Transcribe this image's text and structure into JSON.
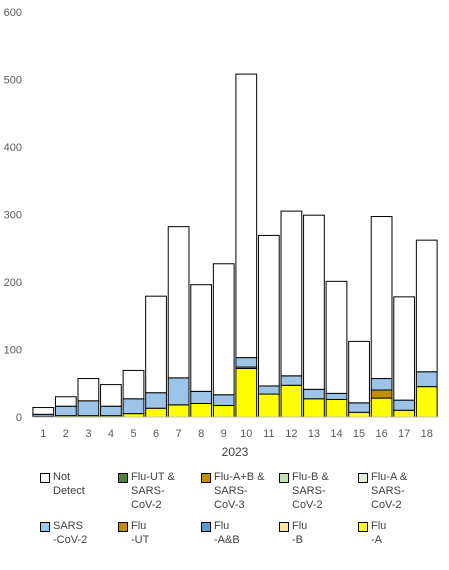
{
  "chart_data": {
    "type": "bar",
    "stacked": true,
    "xlabel": "2023",
    "ylim": [
      0,
      600
    ],
    "yticks": [
      0,
      100,
      200,
      300,
      400,
      500,
      600
    ],
    "grid": false,
    "legend_position": "bottom",
    "categories": [
      "1",
      "2",
      "3",
      "4",
      "5",
      "6",
      "7",
      "8",
      "9",
      "10",
      "11",
      "12",
      "13",
      "14",
      "15",
      "16",
      "17",
      "18"
    ],
    "series": [
      {
        "name": "Flu\n-A",
        "color": "#ffff00",
        "values": [
          1,
          2,
          2,
          2,
          5,
          13,
          18,
          20,
          17,
          72,
          34,
          47,
          27,
          26,
          7,
          28,
          10,
          45
        ]
      },
      {
        "name": "Flu\n-B",
        "color": "#ffe699",
        "values": [
          0,
          0,
          0,
          0,
          0,
          0,
          0,
          0,
          0,
          2,
          0,
          0,
          0,
          0,
          0,
          0,
          0,
          0
        ]
      },
      {
        "name": "Flu\n-A&B",
        "color": "#5b9bd5",
        "values": [
          0,
          0,
          0,
          0,
          0,
          0,
          0,
          0,
          0,
          0,
          0,
          0,
          0,
          0,
          0,
          0,
          0,
          0
        ]
      },
      {
        "name": "Flu\n-UT",
        "color": "#bf8f00",
        "values": [
          0,
          0,
          0,
          0,
          0,
          0,
          0,
          0,
          0,
          0,
          0,
          0,
          0,
          0,
          0,
          12,
          0,
          0
        ]
      },
      {
        "name": "SARS\n-CoV-2",
        "color": "#9dc3e6",
        "values": [
          3,
          14,
          22,
          14,
          22,
          23,
          40,
          18,
          16,
          14,
          12,
          14,
          14,
          9,
          14,
          17,
          15,
          22
        ]
      },
      {
        "name": "Flu-A &\nSARS-\nCoV-2",
        "color": "#e2f0d9",
        "values": [
          0,
          0,
          0,
          0,
          0,
          0,
          0,
          0,
          0,
          0,
          0,
          0,
          0,
          0,
          0,
          0,
          0,
          0
        ]
      },
      {
        "name": "Flu-B &\nSARS-\nCoV-2",
        "color": "#c5e0b4",
        "values": [
          0,
          0,
          0,
          0,
          0,
          0,
          0,
          0,
          0,
          0,
          0,
          0,
          0,
          0,
          0,
          0,
          0,
          0
        ]
      },
      {
        "name": "Flu-A+B &\nSARS-\nCoV-3",
        "color": "#bf9000",
        "values": [
          0,
          0,
          0,
          0,
          0,
          0,
          0,
          0,
          0,
          0,
          0,
          0,
          0,
          0,
          0,
          0,
          0,
          0
        ]
      },
      {
        "name": "Flu-UT &\nSARS-\nCoV-2",
        "color": "#548235",
        "values": [
          0,
          0,
          0,
          0,
          0,
          0,
          0,
          0,
          0,
          0,
          0,
          0,
          0,
          0,
          0,
          0,
          0,
          0
        ]
      },
      {
        "name": "Not\nDetect",
        "color": "#ffffff",
        "values": [
          10,
          14,
          33,
          32,
          42,
          143,
          224,
          158,
          194,
          420,
          223,
          244,
          258,
          166,
          91,
          240,
          153,
          195
        ]
      }
    ]
  }
}
